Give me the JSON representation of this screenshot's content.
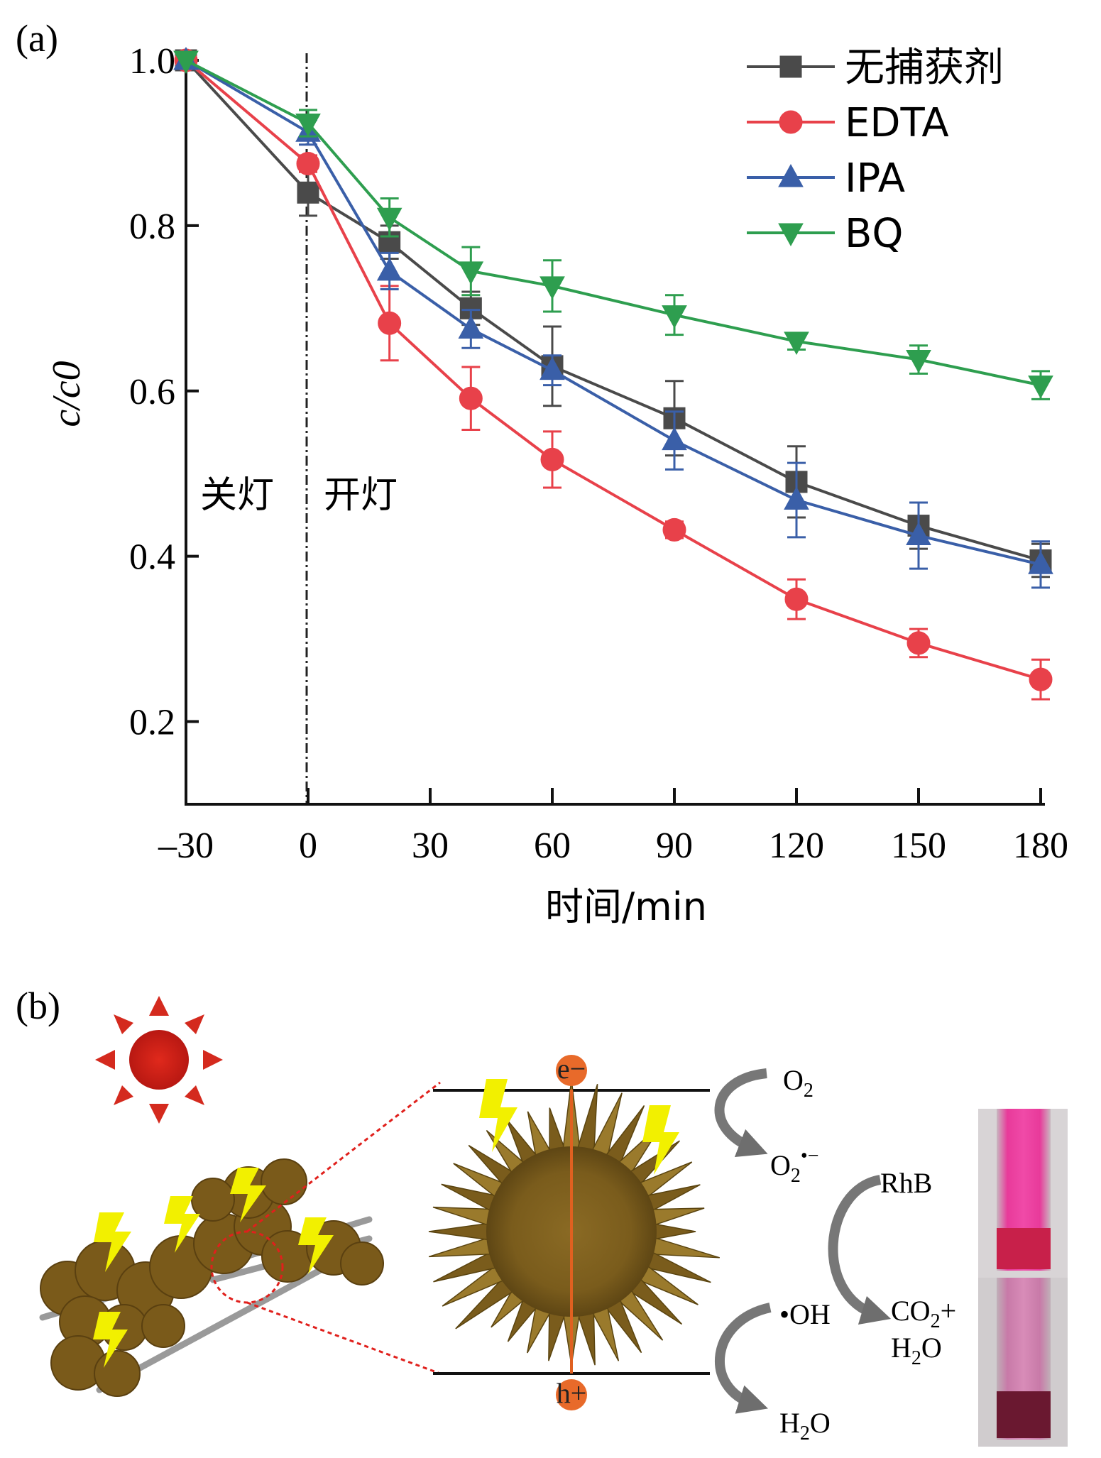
{
  "panel_a_label": "(a)",
  "panel_b_label": "(b)",
  "chart_data": {
    "type": "line",
    "title": "",
    "xlabel": "时间/min",
    "ylabel": "c/c0",
    "xlim": [
      -30,
      180
    ],
    "ylim": [
      0.1,
      1.0
    ],
    "x": [
      -30,
      0,
      20,
      40,
      60,
      90,
      120,
      150,
      180
    ],
    "x_ticks": [
      -30,
      0,
      30,
      60,
      90,
      120,
      150,
      180
    ],
    "x_tick_labels": [
      "–30",
      "0",
      "30",
      "60",
      "90",
      "120",
      "150",
      "180"
    ],
    "y_ticks": [
      0.2,
      0.4,
      0.6,
      0.8,
      1.0
    ],
    "y_tick_labels": [
      "0.2",
      "0.4",
      "0.6",
      "0.8",
      "1.0"
    ],
    "legend_position": "top-right",
    "grid": false,
    "divider_x": 0,
    "annotations": {
      "dark": "关灯",
      "light": "开灯"
    },
    "series": [
      {
        "name": "无捕获剂",
        "color": "#4a4a4a",
        "marker": "square",
        "values": [
          1.0,
          0.84,
          0.78,
          0.7,
          0.63,
          0.567,
          0.49,
          0.437,
          0.395
        ],
        "errors": [
          0.0,
          0.028,
          0.02,
          0.02,
          0.048,
          0.045,
          0.043,
          0.028,
          0.02
        ]
      },
      {
        "name": "EDTA",
        "color": "#e8414a",
        "marker": "circle",
        "values": [
          1.0,
          0.875,
          0.682,
          0.591,
          0.517,
          0.432,
          0.348,
          0.295,
          0.251
        ],
        "errors": [
          0.0,
          0.01,
          0.045,
          0.038,
          0.034,
          0.01,
          0.024,
          0.017,
          0.024
        ]
      },
      {
        "name": "IPA",
        "color": "#3a5fa8",
        "marker": "triangle-up",
        "values": [
          1.0,
          0.913,
          0.745,
          0.675,
          0.625,
          0.54,
          0.468,
          0.425,
          0.39
        ],
        "errors": [
          0.0,
          0.015,
          0.022,
          0.023,
          0.018,
          0.035,
          0.045,
          0.04,
          0.028
        ]
      },
      {
        "name": "BQ",
        "color": "#2e9e4f",
        "marker": "triangle-down",
        "values": [
          1.0,
          0.924,
          0.81,
          0.745,
          0.727,
          0.692,
          0.66,
          0.638,
          0.607
        ],
        "errors": [
          0.0,
          0.016,
          0.023,
          0.029,
          0.031,
          0.024,
          0.01,
          0.017,
          0.017
        ]
      }
    ]
  },
  "schematic": {
    "electron": "e−",
    "hole": "h+",
    "o2": "O",
    "o2_sub": "2",
    "superoxide": "O",
    "superoxide_sub": "2",
    "superoxide_sup": "•−",
    "hydroxyl": "•OH",
    "water": "H",
    "water_sub": "2",
    "water_tail": "O",
    "rhb": "RhB",
    "co2": "CO",
    "co2_sub": "2",
    "co2_plus": "+",
    "h2o": "H",
    "h2o_sub": "2",
    "h2o_tail": "O"
  }
}
